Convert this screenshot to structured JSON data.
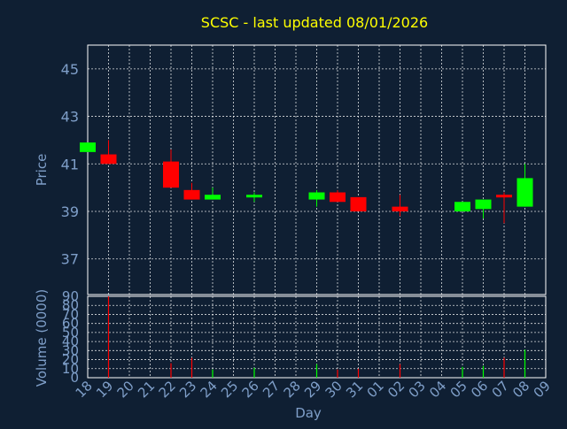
{
  "title": "SCSC - last updated 08/01/2026",
  "colors": {
    "background": "#0f1f33",
    "title": "#ffff00",
    "axis_text": "#7f9fc9",
    "frame": "#ffffff",
    "up": "#00ff00",
    "down": "#ff0000"
  },
  "chart_data": [
    {
      "type": "candlestick",
      "ylabel": "Price",
      "ylim": [
        35.5,
        46.0
      ],
      "yticks": [
        "37",
        "39",
        "41",
        "43",
        "45"
      ],
      "grid": true,
      "categories": [
        "18",
        "19",
        "20",
        "21",
        "22",
        "23",
        "24",
        "25",
        "26",
        "27",
        "28",
        "29",
        "30",
        "31",
        "01",
        "02",
        "03",
        "04",
        "05",
        "06",
        "07",
        "08",
        "09"
      ],
      "candles": [
        {
          "x": "18",
          "open": 41.5,
          "high": 41.9,
          "low": 41.5,
          "close": 41.9
        },
        {
          "x": "19",
          "open": 41.4,
          "high": 42.0,
          "low": 41.0,
          "close": 41.0
        },
        {
          "x": "22",
          "open": 41.1,
          "high": 41.6,
          "low": 40.0,
          "close": 40.0
        },
        {
          "x": "23",
          "open": 39.9,
          "high": 40.2,
          "low": 39.5,
          "close": 39.5
        },
        {
          "x": "24",
          "open": 39.5,
          "high": 40.0,
          "low": 39.5,
          "close": 39.7
        },
        {
          "x": "26",
          "open": 39.6,
          "high": 39.8,
          "low": 39.4,
          "close": 39.7
        },
        {
          "x": "29",
          "open": 39.5,
          "high": 39.9,
          "low": 39.2,
          "close": 39.8
        },
        {
          "x": "30",
          "open": 39.8,
          "high": 39.9,
          "low": 39.4,
          "close": 39.4
        },
        {
          "x": "31",
          "open": 39.6,
          "high": 39.6,
          "low": 39.0,
          "close": 39.0
        },
        {
          "x": "02",
          "open": 39.2,
          "high": 39.7,
          "low": 38.8,
          "close": 39.0
        },
        {
          "x": "05",
          "open": 39.0,
          "high": 39.4,
          "low": 39.0,
          "close": 39.4
        },
        {
          "x": "06",
          "open": 39.1,
          "high": 39.5,
          "low": 38.7,
          "close": 39.5
        },
        {
          "x": "07",
          "open": 39.7,
          "high": 39.8,
          "low": 38.5,
          "close": 39.6
        },
        {
          "x": "08",
          "open": 39.2,
          "high": 41.0,
          "low": 39.2,
          "close": 40.4
        }
      ]
    },
    {
      "type": "bar",
      "ylabel": "Volume (0000)",
      "xlabel": "Day",
      "ylim": [
        0,
        90
      ],
      "yticks": [
        "0",
        "10",
        "20",
        "30",
        "40",
        "50",
        "60",
        "70",
        "80",
        "90"
      ],
      "grid": true,
      "categories": [
        "18",
        "19",
        "20",
        "21",
        "22",
        "23",
        "24",
        "25",
        "26",
        "27",
        "28",
        "29",
        "30",
        "31",
        "01",
        "02",
        "03",
        "04",
        "05",
        "06",
        "07",
        "08",
        "09"
      ],
      "bars": [
        {
          "x": "19",
          "value": 90,
          "direction": "down"
        },
        {
          "x": "22",
          "value": 16,
          "direction": "down"
        },
        {
          "x": "23",
          "value": 22,
          "direction": "down"
        },
        {
          "x": "24",
          "value": 9,
          "direction": "up"
        },
        {
          "x": "26",
          "value": 11,
          "direction": "up"
        },
        {
          "x": "29",
          "value": 15,
          "direction": "up"
        },
        {
          "x": "30",
          "value": 9,
          "direction": "down"
        },
        {
          "x": "31",
          "value": 10,
          "direction": "down"
        },
        {
          "x": "02",
          "value": 15,
          "direction": "down"
        },
        {
          "x": "05",
          "value": 12,
          "direction": "up"
        },
        {
          "x": "06",
          "value": 13,
          "direction": "up"
        },
        {
          "x": "07",
          "value": 22,
          "direction": "down"
        },
        {
          "x": "08",
          "value": 31,
          "direction": "up"
        }
      ]
    }
  ]
}
